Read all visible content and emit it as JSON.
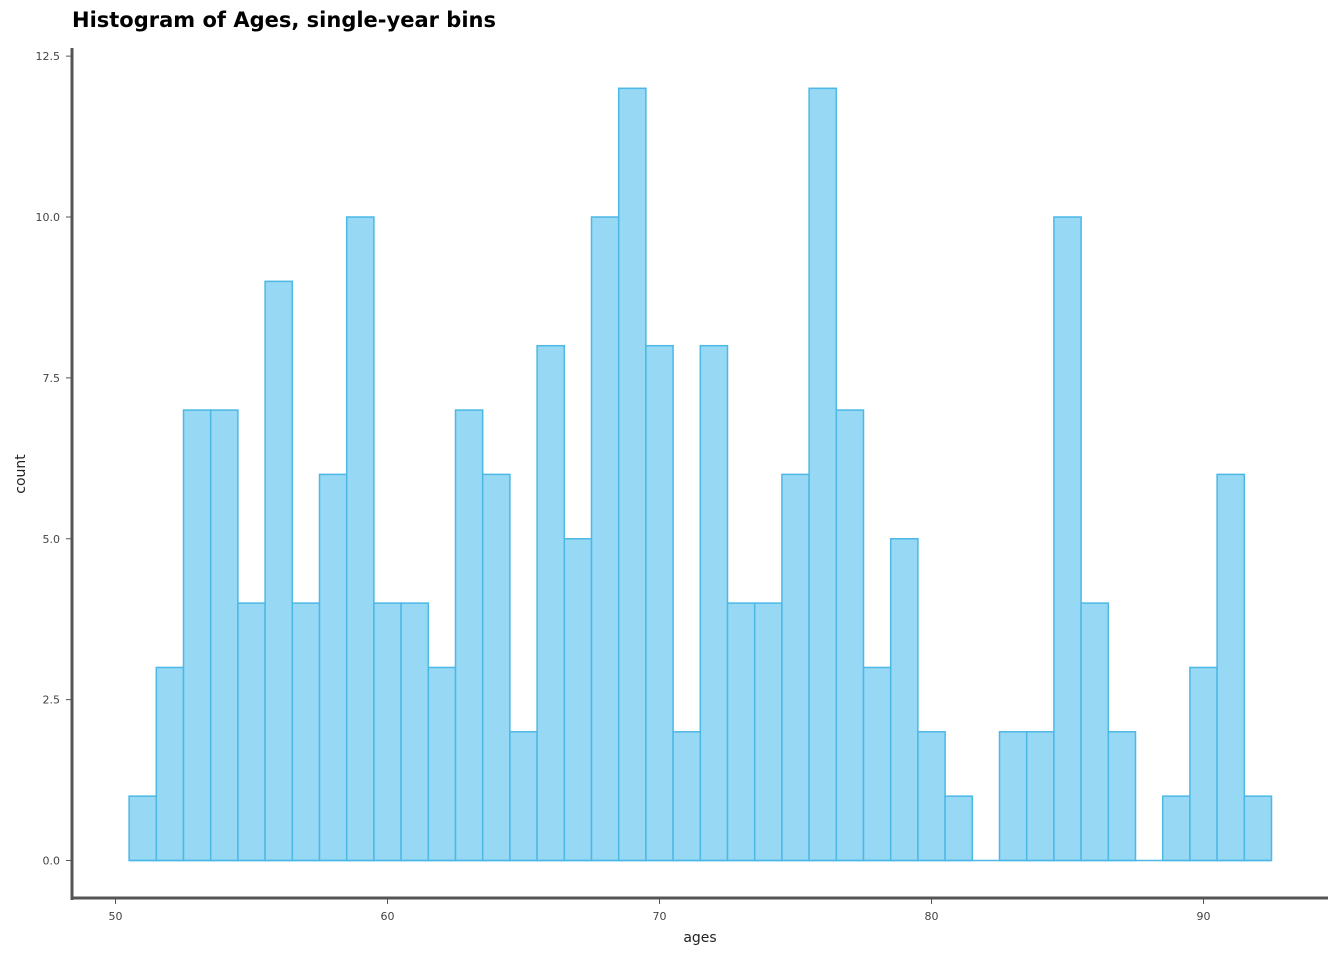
{
  "chart_data": {
    "type": "bar",
    "title": "Histogram of Ages, single-year bins",
    "xlabel": "ages",
    "ylabel": "count",
    "bin_width": 1,
    "bins_start": [
      51,
      52,
      53,
      54,
      55,
      56,
      57,
      58,
      59,
      60,
      61,
      62,
      63,
      64,
      65,
      66,
      67,
      68,
      69,
      70,
      71,
      72,
      73,
      74,
      75,
      76,
      77,
      78,
      79,
      80,
      81,
      82,
      83,
      84,
      85,
      86,
      87,
      88,
      89,
      90,
      91,
      92
    ],
    "values": [
      1,
      3,
      7,
      7,
      4,
      9,
      4,
      6,
      10,
      4,
      4,
      3,
      7,
      6,
      2,
      8,
      5,
      10,
      12,
      8,
      2,
      8,
      4,
      4,
      6,
      12,
      7,
      3,
      5,
      2,
      1,
      0,
      2,
      2,
      10,
      4,
      2,
      0,
      1,
      3,
      6,
      1
    ],
    "xlim": [
      50.5,
      93
    ],
    "ylim": [
      0,
      12.5
    ],
    "x_ticks": [
      50,
      60,
      70,
      80,
      90
    ],
    "x_tick_labels": [
      "50",
      "60",
      "70",
      "80",
      "90"
    ],
    "y_ticks": [
      0,
      2.5,
      5,
      7.5,
      10,
      12.5
    ],
    "y_tick_labels": [
      "0.0",
      "2.5",
      "5.0",
      "7.5",
      "10.0",
      "12.5"
    ],
    "grid": false,
    "colors": {
      "fill": "#97d8f4",
      "stroke": "#4cb8e6",
      "axis": "#555555"
    }
  }
}
